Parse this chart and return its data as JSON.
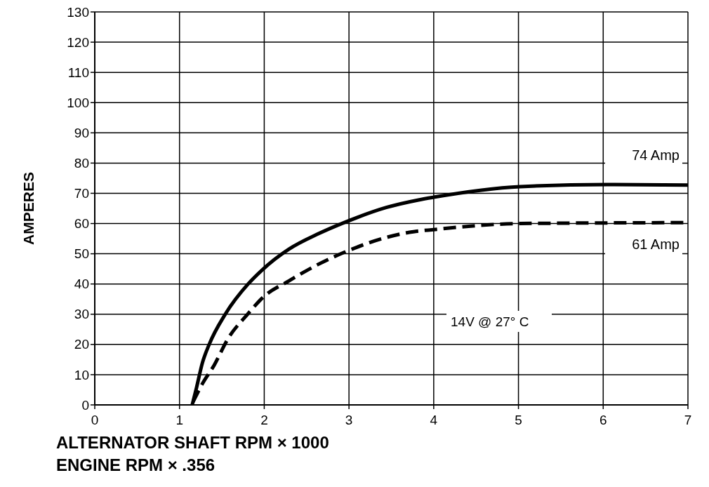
{
  "chart_data": {
    "type": "line",
    "xlabel": "ALTERNATOR SHAFT RPM × 1000\nENGINE RPM × .356",
    "ylabel": "AMPERES",
    "xlim": [
      0,
      7
    ],
    "xticks": [
      0,
      1,
      2,
      3,
      4,
      5,
      6,
      7
    ],
    "ylim": [
      0,
      130
    ],
    "yticks": [
      0,
      10,
      20,
      30,
      40,
      50,
      60,
      70,
      80,
      90,
      100,
      110,
      120,
      130
    ],
    "grid": true,
    "marker": "none",
    "annotations": [
      "14V @ 27° C"
    ],
    "series": [
      {
        "name": "74 Amp",
        "color": "#000000",
        "line_style": "solid",
        "x": [
          1.15,
          1.2,
          1.27,
          1.35,
          1.54,
          1.81,
          1.97,
          2.29,
          2.63,
          2.96,
          3.44,
          3.82,
          4.0,
          5.02,
          6.04,
          7.0
        ],
        "values": [
          0,
          5.6,
          13.9,
          20,
          30,
          40,
          44.5,
          51.5,
          56.5,
          60.5,
          65.3,
          67.8,
          68.7,
          72.2,
          72.9,
          72.7
        ]
      },
      {
        "name": "61 Amp",
        "color": "#000000",
        "line_style": "dashed",
        "x": [
          1.16,
          1.27,
          1.41,
          1.57,
          1.81,
          1.99,
          2.29,
          2.63,
          2.99,
          3.39,
          3.76,
          4.0,
          5.02,
          7.0
        ],
        "values": [
          1,
          7,
          13.2,
          21.8,
          30.2,
          35.7,
          41,
          46.4,
          51,
          55,
          57.3,
          58,
          60,
          60.3
        ]
      }
    ]
  }
}
